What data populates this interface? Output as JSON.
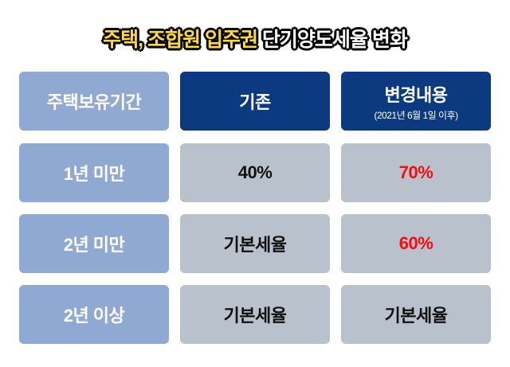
{
  "title": {
    "highlight": "주택, 조합원 입주권",
    "rest": "단기양도세율 변화"
  },
  "headers": [
    {
      "label": "주택보유기간"
    },
    {
      "label": "기존"
    },
    {
      "label": "변경내용",
      "sub": "(2021년 6월 1일 이후)"
    }
  ],
  "rows": [
    {
      "period": "1년 미만",
      "before": "40%",
      "after": "70%"
    },
    {
      "period": "2년 미만",
      "before": "기본세율",
      "after": "60%"
    },
    {
      "period": "2년 이상",
      "before": "기본세율",
      "after": "기본세율"
    }
  ],
  "colors": {
    "highlight": "#ffd83a",
    "label_cell": "#8fa9d3",
    "header_cell": "#0b3a80",
    "value_cell": "#b9c1cd",
    "changed_value": "#f50d0d"
  }
}
